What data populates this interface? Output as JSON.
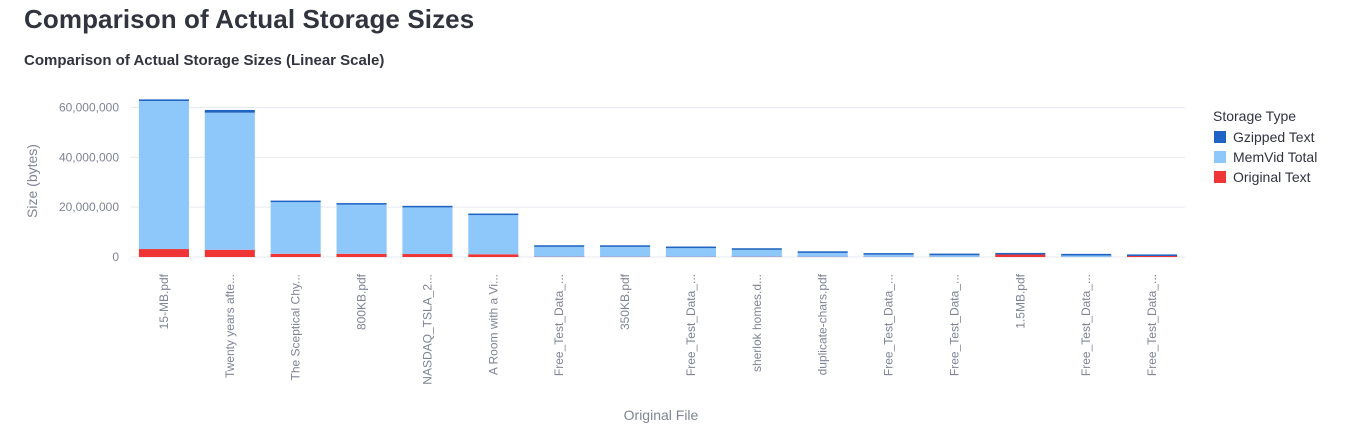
{
  "page": {
    "title": "Comparison of Actual Storage Sizes"
  },
  "chart_data": {
    "type": "bar",
    "stacked": true,
    "title": "Comparison of Actual Storage Sizes (Linear Scale)",
    "xlabel": "Original File",
    "ylabel": "Size (bytes)",
    "ylim": [
      -2000000,
      65000000
    ],
    "yticks": [
      0,
      20000000,
      40000000,
      60000000
    ],
    "ytick_labels": [
      "0",
      "20,000,000",
      "40,000,000",
      "60,000,000"
    ],
    "grid": true,
    "legend_title": "Storage Type",
    "legend_position": "right",
    "categories": [
      "15-MB.pdf",
      "Twenty years afte...",
      "The Sceptical Chy...",
      "800KB.pdf",
      "NASDAQ_TSLA_2...",
      "A Room with a Vi...",
      "Free_Test_Data_...",
      "350KB.pdf",
      "Free_Test_Data_...",
      "sherlok homes.d...",
      "duplicate-chars.pdf",
      "Free_Test_Data_...",
      "Free_Test_Data_...",
      "1.5MB.pdf",
      "Free_Test_Data_...",
      "Free_Test_Data_..."
    ],
    "series": [
      {
        "name": "Original Text",
        "color": "#ef3535",
        "values": [
          3200000,
          2900000,
          1300000,
          1300000,
          1200000,
          1100000,
          80000,
          70000,
          60000,
          80000,
          50000,
          30000,
          20000,
          1000000,
          20000,
          400000
        ]
      },
      {
        "name": "MemVid Total",
        "color": "#8ec8fb",
        "values": [
          59400000,
          55000000,
          20700000,
          19700000,
          18700000,
          15700000,
          4000000,
          4000000,
          3500000,
          2800000,
          1600000,
          900000,
          700000,
          0,
          600000,
          0
        ]
      },
      {
        "name": "Gzipped Text",
        "color": "#1f64c2",
        "values": [
          400000,
          1100000,
          40000,
          40000,
          30000,
          30000,
          5000,
          5000,
          5000,
          5000,
          5000,
          5000,
          5000,
          300000,
          5000,
          50000
        ]
      }
    ],
    "legend_order": [
      "Gzipped Text",
      "MemVid Total",
      "Original Text"
    ]
  }
}
